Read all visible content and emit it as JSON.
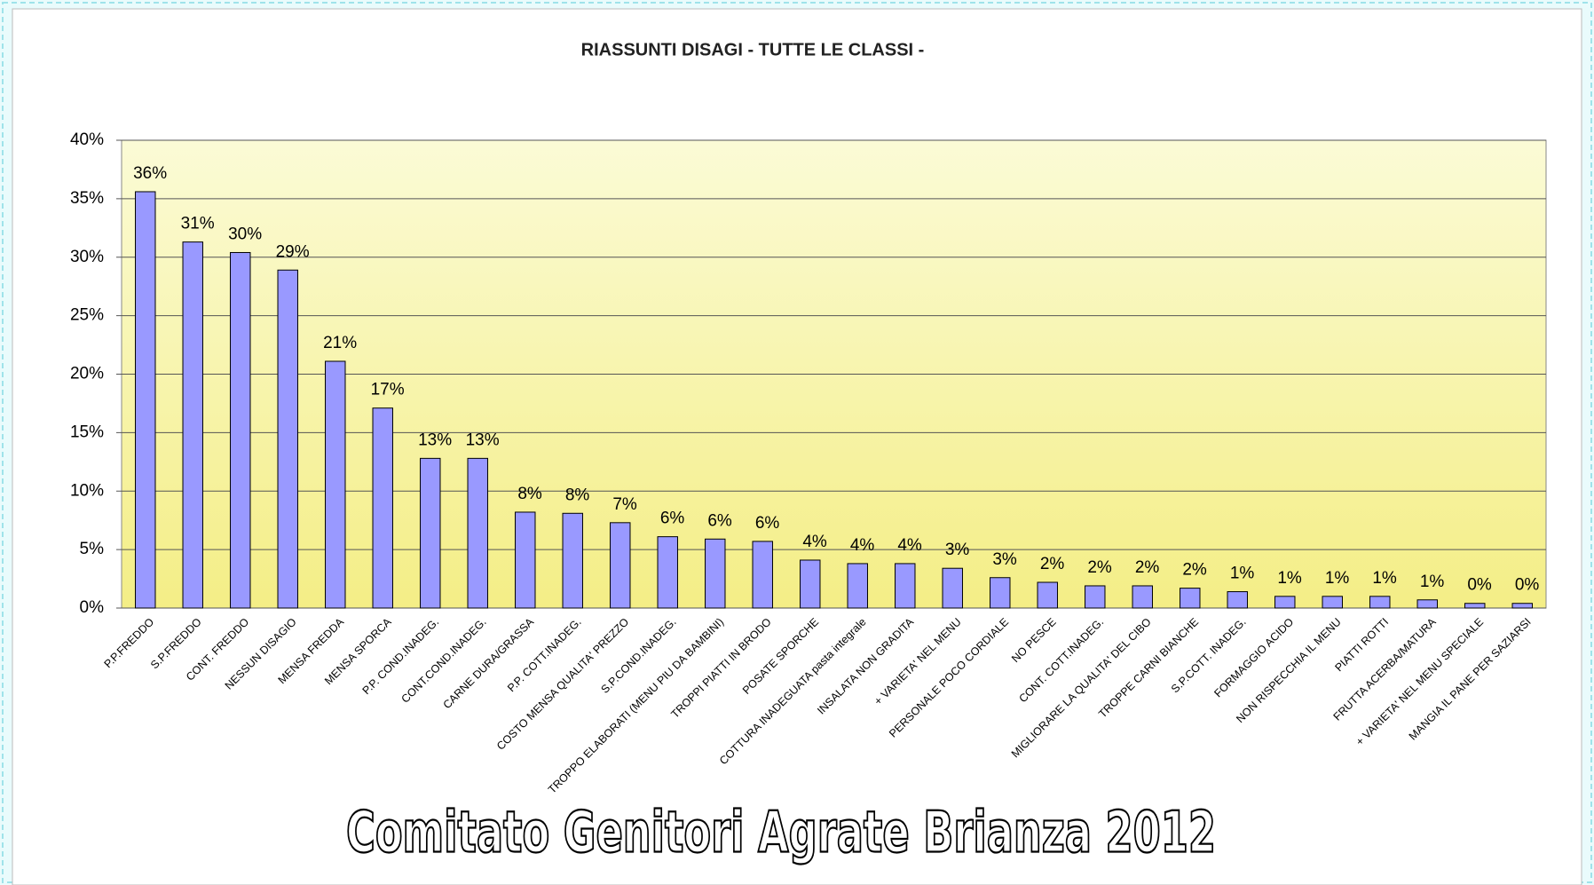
{
  "chart_data": {
    "type": "bar",
    "title": "RIASSUNTI DISAGI - TUTTE LE CLASSI -",
    "footer": "Comitato Genitori Agrate Brianza 2012",
    "categories": [
      "P.P.FREDDO",
      "S.P.FREDDO",
      "CONT. FREDDO",
      "NESSUN DISAGIO",
      "MENSA FREDDA",
      "MENSA SPORCA",
      "P.P. COND.INADEG.",
      "CONT.COND.INADEG.",
      "CARNE DURA/GRASSA",
      "P.P. COTT.INADEG.",
      "COSTO MENSA QUALITA' PREZZO",
      "S.P.COND.INADEG.",
      "TROPPO ELABORATI (MENU PIU DA BAMBINI)",
      "TROPPI PIATTI IN BRODO",
      "POSATE SPORCHE",
      "COTTURA INADEGUATA pasta integrale",
      "INSALATA NON GRADITA",
      "+ VARIETA' NEL MENU",
      "PERSONALE POCO CORDIALE",
      "NO PESCE",
      "CONT. COTT.INADEG.",
      "MIGLIORARE LA QUALITA' DEL CIBO",
      "TROPPE CARNI BIANCHE",
      "S.P.COTT. INADEG.",
      "FORMAGGIO ACIDO",
      "NON RISPECCHIA IL MENU",
      "PIATTI ROTTI",
      "FRUTTA ACERBA/MATURA",
      "+ VARIETA' NEL MENU SPECIALE",
      "MANGIA IL PANE PER SAZIARSI"
    ],
    "values": [
      35.6,
      31.3,
      30.4,
      28.9,
      21.1,
      17.1,
      12.8,
      12.8,
      8.2,
      8.1,
      7.3,
      6.1,
      5.9,
      5.7,
      4.1,
      3.8,
      3.8,
      3.4,
      2.6,
      2.2,
      1.9,
      1.9,
      1.7,
      1.4,
      1.0,
      1.0,
      1.0,
      0.7,
      0.4,
      0.4
    ],
    "value_labels": [
      "36%",
      "31%",
      "30%",
      "29%",
      "21%",
      "17%",
      "13%",
      "13%",
      "8%",
      "8%",
      "7%",
      "6%",
      "6%",
      "6%",
      "4%",
      "4%",
      "4%",
      "3%",
      "3%",
      "2%",
      "2%",
      "2%",
      "2%",
      "1%",
      "1%",
      "1%",
      "1%",
      "1%",
      "0%",
      "0%"
    ],
    "color": "#9999ff",
    "ylim": [
      0,
      40
    ],
    "yticks": [
      {
        "value": 0,
        "label": "0%"
      },
      {
        "value": 5,
        "label": "5%"
      },
      {
        "value": 10,
        "label": "10%"
      },
      {
        "value": 15,
        "label": "15%"
      },
      {
        "value": 20,
        "label": "20%"
      },
      {
        "value": 25,
        "label": "25%"
      },
      {
        "value": 30,
        "label": "30%"
      },
      {
        "value": 35,
        "label": "35%"
      },
      {
        "value": 40,
        "label": "40%"
      }
    ],
    "grid": true
  }
}
